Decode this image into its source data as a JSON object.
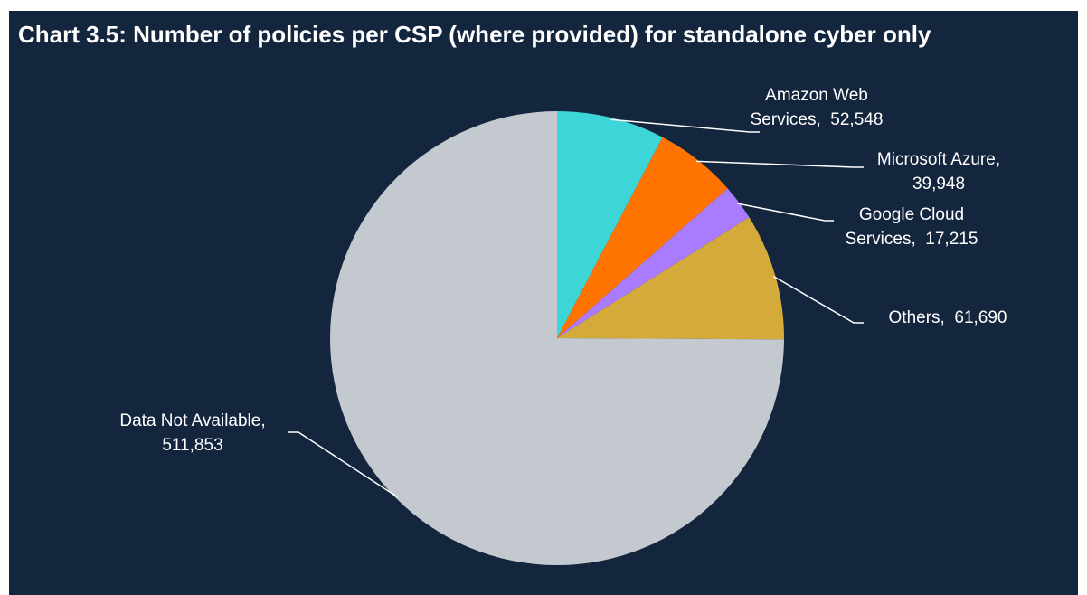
{
  "chart_data": {
    "type": "pie",
    "title": "Chart 3.5: Number of policies per CSP (where provided) for standalone cyber only",
    "slices": [
      {
        "name": "Amazon Web Services",
        "value": 52548,
        "value_label": "52,548",
        "label_lines": [
          "Amazon Web",
          "Services,  52,548"
        ],
        "color": "#3dd6d8"
      },
      {
        "name": "Microsoft Azure",
        "value": 39948,
        "value_label": "39,948",
        "label_lines": [
          "Microsoft Azure,",
          "39,948"
        ],
        "color": "#ff7300"
      },
      {
        "name": "Google Cloud Services",
        "value": 17215,
        "value_label": "17,215",
        "label_lines": [
          "Google Cloud",
          "Services,  17,215"
        ],
        "color": "#a97cff"
      },
      {
        "name": "Others",
        "value": 61690,
        "value_label": "61,690",
        "label_lines": [
          "Others,  61,690"
        ],
        "color": "#d4ab3a"
      },
      {
        "name": "Data Not Available",
        "value": 511853,
        "value_label": "511,853",
        "label_lines": [
          "Data Not Available,",
          "511,853"
        ],
        "color": "#c4c8cf"
      }
    ],
    "start_angle": "12 o'clock",
    "direction": "clockwise",
    "legend": "none",
    "label_style": "outside with leader lines"
  },
  "colors": {
    "background": "#14253e",
    "text": "#ffffff"
  }
}
